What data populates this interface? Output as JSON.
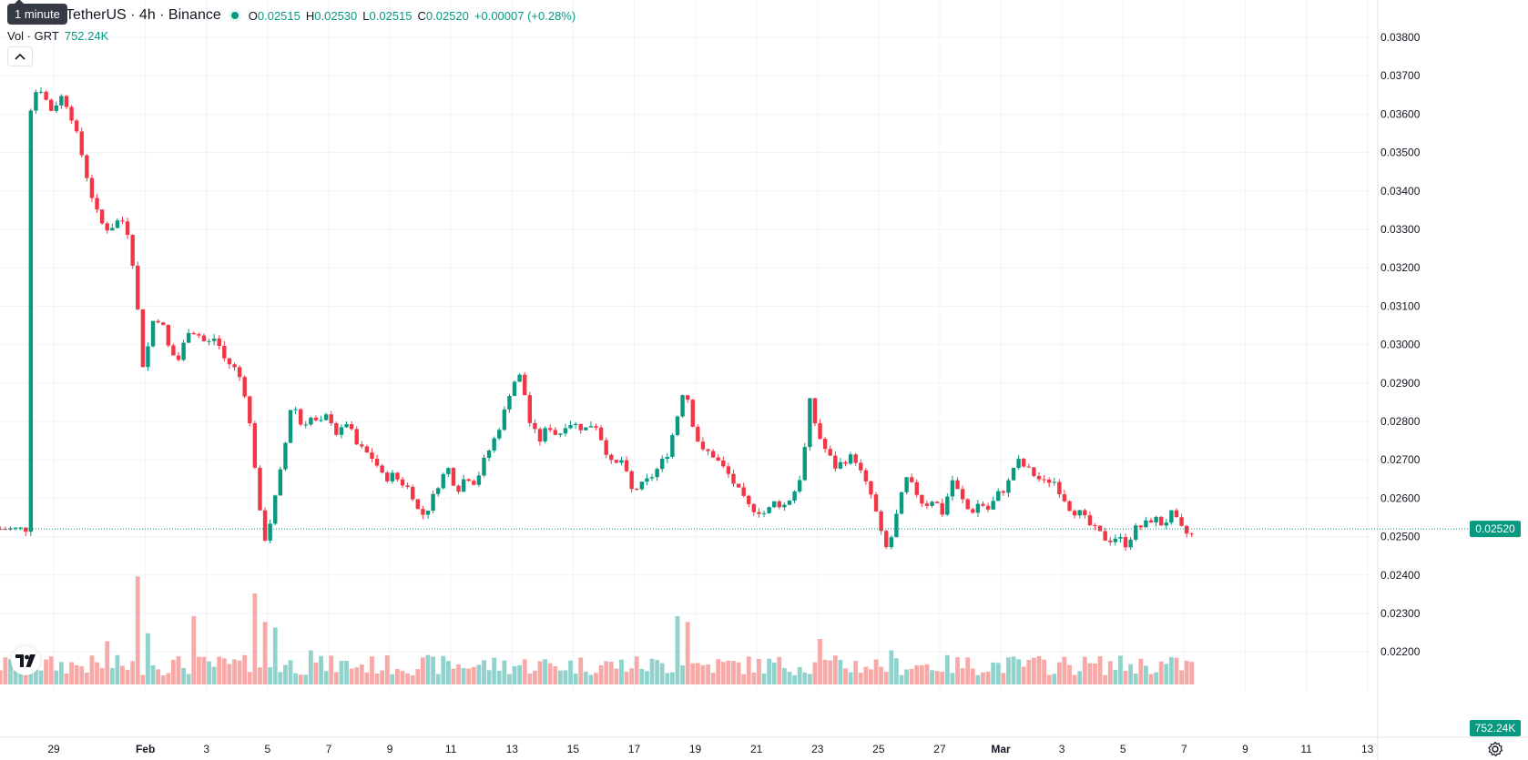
{
  "header": {
    "symbol": "TetherUS · 4h · Binance",
    "tooltip": "1 minute",
    "ohlc": {
      "o_label": "O",
      "o": "0.02515",
      "h_label": "H",
      "h": "0.02530",
      "l_label": "L",
      "l": "0.02515",
      "c_label": "C",
      "c": "0.02520"
    },
    "change": "+0.00007 (+0.28%)",
    "volume_label": "Vol · GRT",
    "volume_value": "752.24K"
  },
  "colors": {
    "up": "#089981",
    "down": "#f23645",
    "up_volume": "#92d2cc",
    "down_volume": "#f7a9a7",
    "grid": "#f0f3fa",
    "axis_text": "#131722",
    "price_line": "#089981"
  },
  "icons": {
    "logo": "tradingview-logo-icon",
    "collapse": "chevron-up-icon",
    "settings": "gear-icon"
  },
  "chart_data": {
    "type": "candlestick",
    "interval": "4h",
    "last_price": "0.02520",
    "last_volume": "752.24K",
    "ylim": [
      0.0225,
      0.038
    ],
    "y_ticks": [
      "0.03800",
      "0.03700",
      "0.03600",
      "0.03500",
      "0.03400",
      "0.03300",
      "0.03200",
      "0.03100",
      "0.03000",
      "0.02900",
      "0.02800",
      "0.02700",
      "0.02600",
      "0.02500",
      "0.02400",
      "0.02300",
      "0.02200"
    ],
    "x_ticks": [
      {
        "label": "29",
        "day": 0
      },
      {
        "label": "Feb",
        "day": 3
      },
      {
        "label": "3",
        "day": 5
      },
      {
        "label": "5",
        "day": 7
      },
      {
        "label": "7",
        "day": 9
      },
      {
        "label": "9",
        "day": 11
      },
      {
        "label": "11",
        "day": 13
      },
      {
        "label": "13",
        "day": 15
      },
      {
        "label": "15",
        "day": 17
      },
      {
        "label": "17",
        "day": 19
      },
      {
        "label": "19",
        "day": 21
      },
      {
        "label": "21",
        "day": 23
      },
      {
        "label": "23",
        "day": 25
      },
      {
        "label": "25",
        "day": 27
      },
      {
        "label": "27",
        "day": 29
      },
      {
        "label": "Mar",
        "day": 31
      },
      {
        "label": "3",
        "day": 33
      },
      {
        "label": "5",
        "day": 35
      },
      {
        "label": "7",
        "day": 37
      },
      {
        "label": "9",
        "day": 39
      },
      {
        "label": "11",
        "day": 41
      },
      {
        "label": "13",
        "day": 43
      }
    ],
    "close_path": [
      [
        -0.9,
        0.0358
      ],
      [
        -0.5,
        0.0368
      ],
      [
        -0.1,
        0.0361
      ],
      [
        0.3,
        0.0365
      ],
      [
        0.6,
        0.0359
      ],
      [
        0.9,
        0.035
      ],
      [
        1.2,
        0.034
      ],
      [
        1.5,
        0.0332
      ],
      [
        1.8,
        0.033
      ],
      [
        2.2,
        0.0333
      ],
      [
        2.5,
        0.0328
      ],
      [
        2.8,
        0.0305
      ],
      [
        2.95,
        0.0292
      ],
      [
        3.2,
        0.0306
      ],
      [
        3.5,
        0.0307
      ],
      [
        3.8,
        0.0298
      ],
      [
        4.1,
        0.0296
      ],
      [
        4.4,
        0.0304
      ],
      [
        4.7,
        0.0303
      ],
      [
        5.0,
        0.03
      ],
      [
        5.3,
        0.0302
      ],
      [
        5.6,
        0.0296
      ],
      [
        5.9,
        0.0294
      ],
      [
        6.2,
        0.029
      ],
      [
        6.5,
        0.0275
      ],
      [
        6.8,
        0.0252
      ],
      [
        6.95,
        0.0249
      ],
      [
        7.2,
        0.0258
      ],
      [
        7.5,
        0.027
      ],
      [
        7.8,
        0.0286
      ],
      [
        8.1,
        0.0279
      ],
      [
        8.4,
        0.0281
      ],
      [
        8.7,
        0.0279
      ],
      [
        9.0,
        0.0282
      ],
      [
        9.3,
        0.0276
      ],
      [
        9.6,
        0.028
      ],
      [
        9.9,
        0.0274
      ],
      [
        10.2,
        0.0272
      ],
      [
        10.5,
        0.027
      ],
      [
        10.8,
        0.0265
      ],
      [
        11.1,
        0.0266
      ],
      [
        11.4,
        0.0264
      ],
      [
        11.7,
        0.0262
      ],
      [
        12.0,
        0.0255
      ],
      [
        12.3,
        0.0258
      ],
      [
        12.6,
        0.0264
      ],
      [
        12.9,
        0.0268
      ],
      [
        13.2,
        0.0262
      ],
      [
        13.5,
        0.0266
      ],
      [
        13.8,
        0.0264
      ],
      [
        14.1,
        0.027
      ],
      [
        14.4,
        0.0275
      ],
      [
        14.7,
        0.0281
      ],
      [
        15.0,
        0.029
      ],
      [
        15.3,
        0.0292
      ],
      [
        15.6,
        0.0279
      ],
      [
        15.9,
        0.0275
      ],
      [
        16.2,
        0.0279
      ],
      [
        16.5,
        0.0276
      ],
      [
        16.8,
        0.028
      ],
      [
        17.1,
        0.0279
      ],
      [
        17.4,
        0.0278
      ],
      [
        17.7,
        0.028
      ],
      [
        18.0,
        0.0274
      ],
      [
        18.3,
        0.0268
      ],
      [
        18.6,
        0.027
      ],
      [
        18.9,
        0.0262
      ],
      [
        19.2,
        0.0263
      ],
      [
        19.5,
        0.0265
      ],
      [
        19.8,
        0.0268
      ],
      [
        20.1,
        0.0272
      ],
      [
        20.4,
        0.0281
      ],
      [
        20.65,
        0.029
      ],
      [
        20.9,
        0.028
      ],
      [
        21.2,
        0.0272
      ],
      [
        21.5,
        0.0272
      ],
      [
        21.8,
        0.0269
      ],
      [
        22.1,
        0.0266
      ],
      [
        22.4,
        0.0262
      ],
      [
        22.7,
        0.0258
      ],
      [
        23.0,
        0.0257
      ],
      [
        23.3,
        0.0256
      ],
      [
        23.6,
        0.0259
      ],
      [
        23.9,
        0.0258
      ],
      [
        24.2,
        0.0261
      ],
      [
        24.5,
        0.0267
      ],
      [
        24.75,
        0.0285
      ],
      [
        25.0,
        0.0277
      ],
      [
        25.3,
        0.0272
      ],
      [
        25.6,
        0.0268
      ],
      [
        25.9,
        0.027
      ],
      [
        26.2,
        0.0271
      ],
      [
        26.5,
        0.0265
      ],
      [
        26.8,
        0.026
      ],
      [
        27.1,
        0.025
      ],
      [
        27.3,
        0.0246
      ],
      [
        27.6,
        0.0256
      ],
      [
        27.9,
        0.0265
      ],
      [
        28.2,
        0.0262
      ],
      [
        28.5,
        0.0258
      ],
      [
        28.8,
        0.026
      ],
      [
        29.1,
        0.0256
      ],
      [
        29.4,
        0.0265
      ],
      [
        29.7,
        0.026
      ],
      [
        30.0,
        0.0256
      ],
      [
        30.3,
        0.0259
      ],
      [
        30.6,
        0.0257
      ],
      [
        30.9,
        0.0261
      ],
      [
        31.2,
        0.0263
      ],
      [
        31.5,
        0.027
      ],
      [
        31.8,
        0.0268
      ],
      [
        32.1,
        0.0266
      ],
      [
        32.4,
        0.0264
      ],
      [
        32.7,
        0.0265
      ],
      [
        33.0,
        0.0261
      ],
      [
        33.3,
        0.0257
      ],
      [
        33.6,
        0.0256
      ],
      [
        33.9,
        0.0253
      ],
      [
        34.2,
        0.0251
      ],
      [
        34.5,
        0.0249
      ],
      [
        34.8,
        0.025
      ],
      [
        35.1,
        0.0248
      ],
      [
        35.4,
        0.0252
      ],
      [
        35.7,
        0.0253
      ],
      [
        36.0,
        0.0255
      ],
      [
        36.3,
        0.0253
      ],
      [
        36.6,
        0.0256
      ],
      [
        36.9,
        0.0252
      ],
      [
        37.2,
        0.025
      ],
      [
        37.4,
        0.0252
      ]
    ],
    "volume_spikes": [
      {
        "day": 2.75,
        "value": 0.95
      },
      {
        "day": 6.55,
        "value": 0.8
      },
      {
        "day": 6.85,
        "value": 0.7
      },
      {
        "day": 6.95,
        "value": 0.55
      },
      {
        "day": 7.3,
        "value": 0.5
      },
      {
        "day": 4.5,
        "value": 0.6
      },
      {
        "day": 3.1,
        "value": 0.45
      },
      {
        "day": 20.5,
        "value": 0.6
      },
      {
        "day": 20.7,
        "value": 0.55
      },
      {
        "day": 8.4,
        "value": 0.3
      },
      {
        "day": 1.7,
        "value": 0.38
      },
      {
        "day": 25.1,
        "value": 0.4
      },
      {
        "day": 27.5,
        "value": 0.3
      }
    ]
  }
}
